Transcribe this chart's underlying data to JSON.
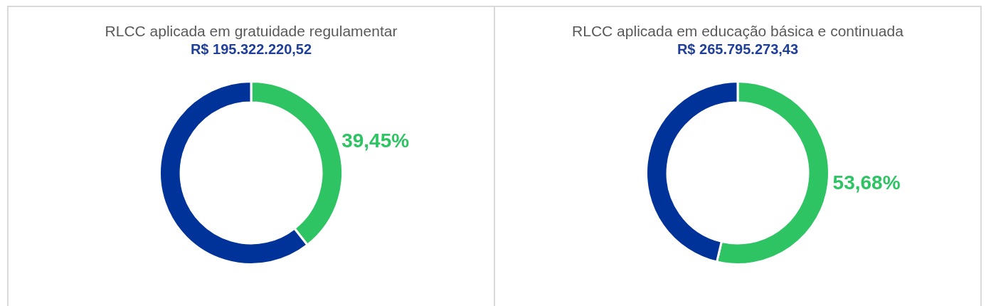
{
  "chart_data": [
    {
      "type": "donut",
      "title": "RLCC aplicada em gratuidade regulamentar",
      "subtitle": "R$ 195.322.220,52",
      "categories": [
        null,
        null
      ],
      "values": [
        39.45,
        60.55
      ],
      "colors": [
        "#2ec464",
        "#003399"
      ],
      "value_labels": [
        "39,45%",
        null
      ]
    },
    {
      "type": "donut",
      "title": "RLCC aplicada em educação básica e continuada",
      "subtitle": "R$ 265.795.273,43",
      "categories": [
        null,
        null
      ],
      "values": [
        53.68,
        46.32
      ],
      "colors": [
        "#2ec464",
        "#003399"
      ],
      "value_labels": [
        "53,68%",
        null
      ]
    }
  ]
}
